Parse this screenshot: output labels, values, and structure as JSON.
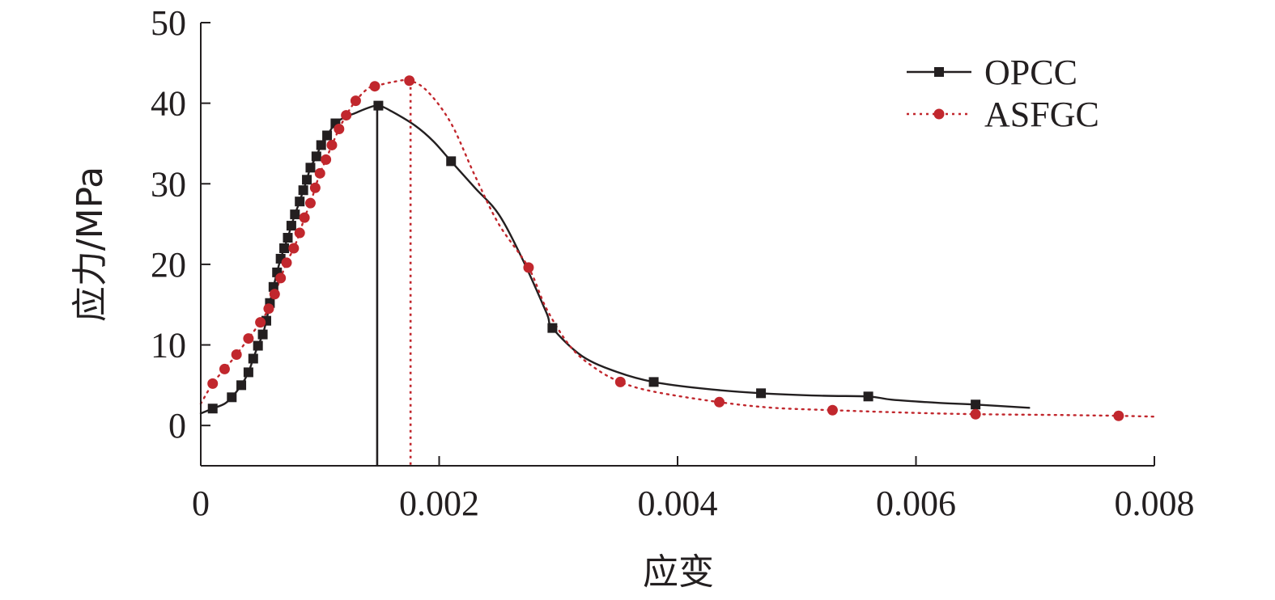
{
  "chart_data": {
    "type": "line",
    "xlabel": "应变",
    "ylabel": "应力/MPa",
    "xlim": [
      0,
      0.008
    ],
    "ylim": [
      -5,
      50
    ],
    "x_ticks": [
      "0",
      "0.002",
      "0.004",
      "0.006",
      "0.008"
    ],
    "x_tick_values": [
      0,
      0.002,
      0.004,
      0.006,
      0.008
    ],
    "y_ticks": [
      "0",
      "10",
      "20",
      "30",
      "40",
      "50"
    ],
    "y_tick_values": [
      0,
      10,
      20,
      30,
      40,
      50
    ],
    "grid": false,
    "legend_position": "top-right",
    "series": [
      {
        "name": "OPCC",
        "color": "#231f20",
        "line_style": "solid",
        "marker": "square",
        "line": [
          [
            0.0,
            1.5
          ],
          [
            0.0001,
            2.1
          ],
          [
            0.0002,
            2.7
          ],
          [
            0.00026,
            3.5
          ],
          [
            0.00034,
            5.0
          ],
          [
            0.0004,
            6.6
          ],
          [
            0.00044,
            8.3
          ],
          [
            0.00048,
            9.9
          ],
          [
            0.00052,
            11.3
          ],
          [
            0.00055,
            13.0
          ],
          [
            0.00058,
            15.2
          ],
          [
            0.00061,
            17.2
          ],
          [
            0.00064,
            19.0
          ],
          [
            0.00067,
            20.7
          ],
          [
            0.0007,
            22.0
          ],
          [
            0.00073,
            23.3
          ],
          [
            0.00076,
            24.8
          ],
          [
            0.00079,
            26.2
          ],
          [
            0.00083,
            27.8
          ],
          [
            0.00086,
            29.2
          ],
          [
            0.00089,
            30.5
          ],
          [
            0.00092,
            32.0
          ],
          [
            0.00097,
            33.4
          ],
          [
            0.00101,
            34.8
          ],
          [
            0.00106,
            36.0
          ],
          [
            0.00113,
            37.5
          ],
          [
            0.0012,
            38.2
          ],
          [
            0.0013,
            38.8
          ],
          [
            0.0014,
            39.4
          ],
          [
            0.00149,
            39.7
          ],
          [
            0.0016,
            39.0
          ],
          [
            0.0018,
            37.2
          ],
          [
            0.00195,
            35.3
          ],
          [
            0.0021,
            32.8
          ],
          [
            0.0023,
            29.5
          ],
          [
            0.0025,
            26.2
          ],
          [
            0.0027,
            20.6
          ],
          [
            0.0029,
            14.0
          ],
          [
            0.00295,
            12.1
          ],
          [
            0.0032,
            8.6
          ],
          [
            0.0035,
            6.6
          ],
          [
            0.0038,
            5.4
          ],
          [
            0.0042,
            4.6
          ],
          [
            0.0047,
            4.0
          ],
          [
            0.0052,
            3.7
          ],
          [
            0.0056,
            3.6
          ],
          [
            0.0058,
            3.2
          ],
          [
            0.0062,
            2.8
          ],
          [
            0.0065,
            2.6
          ],
          [
            0.00695,
            2.2
          ]
        ],
        "markers": [
          [
            0.0001,
            2.1
          ],
          [
            0.00026,
            3.5
          ],
          [
            0.00034,
            5.0
          ],
          [
            0.0004,
            6.6
          ],
          [
            0.00044,
            8.3
          ],
          [
            0.00048,
            9.9
          ],
          [
            0.00052,
            11.3
          ],
          [
            0.00055,
            13.0
          ],
          [
            0.00058,
            15.2
          ],
          [
            0.00061,
            17.2
          ],
          [
            0.00064,
            19.0
          ],
          [
            0.00067,
            20.7
          ],
          [
            0.0007,
            22.0
          ],
          [
            0.00073,
            23.3
          ],
          [
            0.00076,
            24.8
          ],
          [
            0.00079,
            26.2
          ],
          [
            0.00083,
            27.8
          ],
          [
            0.00086,
            29.2
          ],
          [
            0.00089,
            30.5
          ],
          [
            0.00092,
            32.0
          ],
          [
            0.00097,
            33.4
          ],
          [
            0.00101,
            34.8
          ],
          [
            0.00106,
            36.0
          ],
          [
            0.00113,
            37.5
          ],
          [
            0.00149,
            39.7
          ],
          [
            0.0021,
            32.8
          ],
          [
            0.00295,
            12.1
          ],
          [
            0.0038,
            5.4
          ],
          [
            0.0047,
            4.0
          ],
          [
            0.0056,
            3.6
          ],
          [
            0.0065,
            2.6
          ]
        ],
        "peak_strain": 0.00148
      },
      {
        "name": "ASFGC",
        "color": "#c1272d",
        "line_style": "dotted",
        "marker": "circle",
        "line": [
          [
            0.0,
            2.7
          ],
          [
            0.0001,
            5.2
          ],
          [
            0.0002,
            7.0
          ],
          [
            0.0003,
            8.8
          ],
          [
            0.0004,
            10.8
          ],
          [
            0.0005,
            12.8
          ],
          [
            0.00057,
            14.5
          ],
          [
            0.00062,
            16.3
          ],
          [
            0.00067,
            18.3
          ],
          [
            0.00072,
            20.2
          ],
          [
            0.00078,
            22.0
          ],
          [
            0.00083,
            23.9
          ],
          [
            0.00087,
            25.8
          ],
          [
            0.00092,
            27.6
          ],
          [
            0.00096,
            29.5
          ],
          [
            0.001,
            31.3
          ],
          [
            0.00105,
            33.0
          ],
          [
            0.0011,
            34.8
          ],
          [
            0.00116,
            36.8
          ],
          [
            0.00122,
            38.5
          ],
          [
            0.0013,
            40.3
          ],
          [
            0.0014,
            41.8
          ],
          [
            0.00146,
            42.1
          ],
          [
            0.0016,
            42.6
          ],
          [
            0.00175,
            42.8
          ],
          [
            0.0019,
            41.5
          ],
          [
            0.0021,
            37.5
          ],
          [
            0.0023,
            31.0
          ],
          [
            0.0025,
            25.0
          ],
          [
            0.00275,
            19.6
          ],
          [
            0.0029,
            14.5
          ],
          [
            0.0031,
            9.8
          ],
          [
            0.0033,
            7.2
          ],
          [
            0.00352,
            5.4
          ],
          [
            0.0038,
            4.2
          ],
          [
            0.00435,
            2.9
          ],
          [
            0.0048,
            2.2
          ],
          [
            0.0053,
            1.9
          ],
          [
            0.0059,
            1.6
          ],
          [
            0.0065,
            1.4
          ],
          [
            0.0072,
            1.3
          ],
          [
            0.0077,
            1.2
          ],
          [
            0.008,
            1.1
          ]
        ],
        "markers": [
          [
            0.0001,
            5.2
          ],
          [
            0.0002,
            7.0
          ],
          [
            0.0003,
            8.8
          ],
          [
            0.0004,
            10.8
          ],
          [
            0.0005,
            12.8
          ],
          [
            0.00057,
            14.5
          ],
          [
            0.00062,
            16.3
          ],
          [
            0.00067,
            18.3
          ],
          [
            0.00072,
            20.2
          ],
          [
            0.00078,
            22.0
          ],
          [
            0.00083,
            23.9
          ],
          [
            0.00087,
            25.8
          ],
          [
            0.00092,
            27.6
          ],
          [
            0.00096,
            29.5
          ],
          [
            0.001,
            31.3
          ],
          [
            0.00105,
            33.0
          ],
          [
            0.0011,
            34.8
          ],
          [
            0.00116,
            36.8
          ],
          [
            0.00122,
            38.5
          ],
          [
            0.0013,
            40.3
          ],
          [
            0.00146,
            42.1
          ],
          [
            0.00175,
            42.8
          ],
          [
            0.00275,
            19.6
          ],
          [
            0.00352,
            5.4
          ],
          [
            0.00435,
            2.9
          ],
          [
            0.0053,
            1.9
          ],
          [
            0.0065,
            1.4
          ],
          [
            0.0077,
            1.2
          ]
        ],
        "peak_strain": 0.00176
      }
    ]
  }
}
